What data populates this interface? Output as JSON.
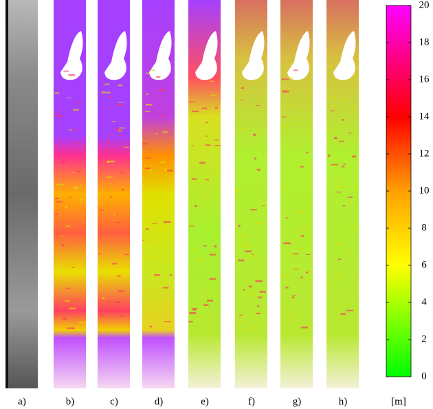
{
  "panels": {
    "labels": [
      "a)",
      "b)",
      "c)",
      "d)",
      "e)",
      "f)",
      "g)",
      "h)"
    ]
  },
  "colorbar": {
    "unit": "[m]",
    "lim": [
      0,
      20
    ],
    "ticks": [
      0,
      2,
      4,
      6,
      8,
      10,
      12,
      14,
      16,
      18,
      20
    ]
  }
}
